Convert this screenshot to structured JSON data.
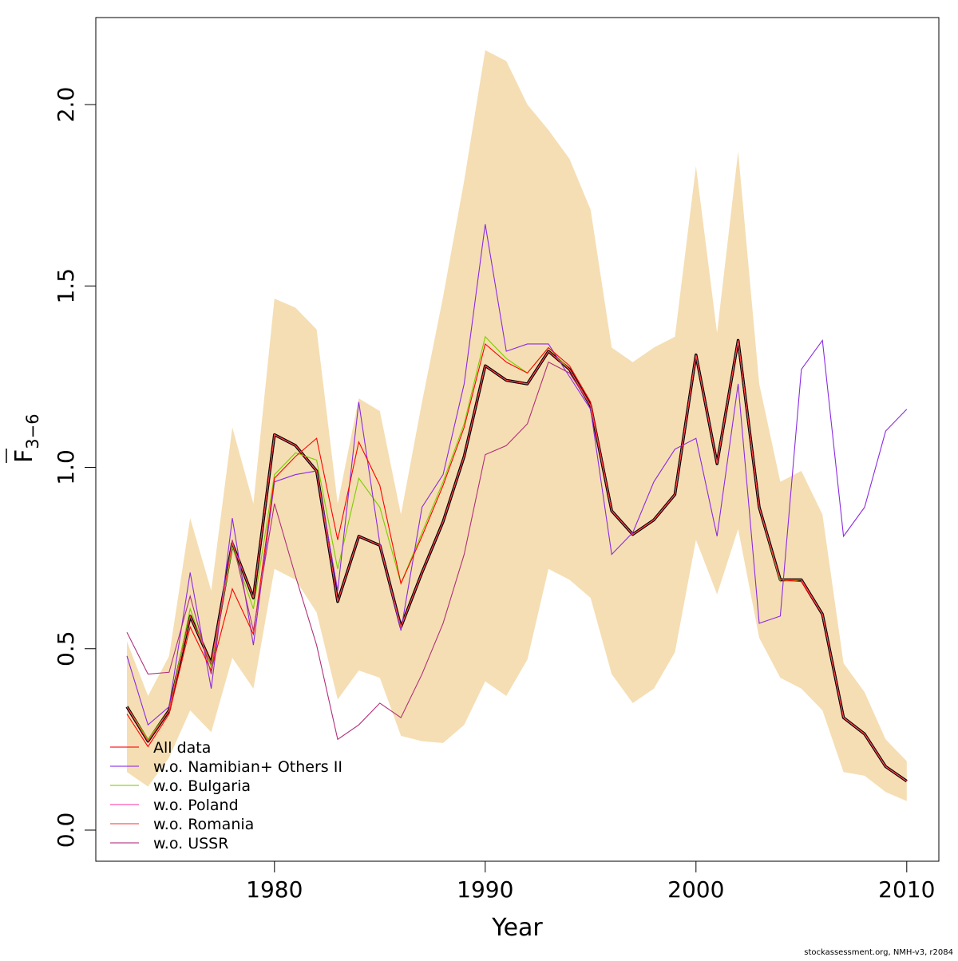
{
  "chart_data": {
    "type": "line",
    "title": "",
    "xlabel": "Year",
    "ylabel": "F̄3−6",
    "ylabel_main": "F",
    "ylabel_sub": "3−6",
    "xlim": [
      1972,
      2011.5
    ],
    "ylim": [
      -0.08,
      2.24
    ],
    "xticks": [
      1980,
      1990,
      2000,
      2010
    ],
    "yticks": [
      0.0,
      0.5,
      1.0,
      1.5,
      2.0
    ],
    "ytick_labels": [
      "0.0",
      "0.5",
      "1.0",
      "1.5",
      "2.0"
    ],
    "x": [
      1973,
      1974,
      1975,
      1976,
      1977,
      1978,
      1979,
      1980,
      1981,
      1982,
      1983,
      1984,
      1985,
      1986,
      1987,
      1988,
      1989,
      1990,
      1991,
      1992,
      1993,
      1994,
      1995,
      1996,
      1997,
      1998,
      1999,
      2000,
      2001,
      2002,
      2003,
      2004,
      2005,
      2006,
      2007,
      2008,
      2009,
      2010
    ],
    "band": {
      "color": "#F5DEB3",
      "upper": [
        0.52,
        0.37,
        0.48,
        0.86,
        0.66,
        1.11,
        0.9,
        1.465,
        1.44,
        1.38,
        0.9,
        1.19,
        1.155,
        0.87,
        1.18,
        1.47,
        1.79,
        2.15,
        2.12,
        2.0,
        1.93,
        1.85,
        1.71,
        1.33,
        1.29,
        1.33,
        1.36,
        1.83,
        1.37,
        1.87,
        1.23,
        0.96,
        0.99,
        0.87,
        0.46,
        0.38,
        0.25,
        0.19
      ],
      "lower": [
        0.16,
        0.12,
        0.2,
        0.33,
        0.27,
        0.475,
        0.39,
        0.72,
        0.69,
        0.6,
        0.36,
        0.44,
        0.42,
        0.26,
        0.245,
        0.24,
        0.29,
        0.41,
        0.37,
        0.47,
        0.72,
        0.69,
        0.64,
        0.43,
        0.35,
        0.39,
        0.49,
        0.8,
        0.65,
        0.83,
        0.53,
        0.42,
        0.39,
        0.33,
        0.16,
        0.15,
        0.105,
        0.08
      ]
    },
    "baseline": [
      0.34,
      0.245,
      0.33,
      0.59,
      0.46,
      0.79,
      0.64,
      1.09,
      1.06,
      0.99,
      0.63,
      0.81,
      0.785,
      0.56,
      0.71,
      0.85,
      1.03,
      1.28,
      1.24,
      1.23,
      1.32,
      1.27,
      1.17,
      0.88,
      0.815,
      0.855,
      0.925,
      1.31,
      1.01,
      1.35,
      0.89,
      0.69,
      0.69,
      0.595,
      0.31,
      0.265,
      0.175,
      0.135
    ],
    "series": [
      {
        "name": "All data",
        "color": "#FF0000",
        "values": [
          0.32,
          0.23,
          0.32,
          0.56,
          0.44,
          0.665,
          0.54,
          0.97,
          1.03,
          1.08,
          0.8,
          1.07,
          0.95,
          0.68,
          0.81,
          0.95,
          1.11,
          1.34,
          1.29,
          1.26,
          1.33,
          1.28,
          1.18,
          0.88,
          0.815,
          0.855,
          0.925,
          1.31,
          1.01,
          1.35,
          0.89,
          0.69,
          0.685,
          0.595,
          0.31,
          0.265,
          0.175,
          0.135
        ]
      },
      {
        "name": "w.o. Namibian+ Others II",
        "color": "#8A2BE2",
        "values": [
          0.48,
          0.29,
          0.34,
          0.71,
          0.39,
          0.86,
          0.51,
          0.96,
          0.98,
          0.99,
          0.66,
          1.18,
          0.79,
          0.55,
          0.89,
          0.98,
          1.23,
          1.67,
          1.32,
          1.34,
          1.34,
          1.25,
          1.16,
          0.76,
          0.82,
          0.96,
          1.05,
          1.08,
          0.81,
          1.23,
          0.57,
          0.59,
          1.27,
          1.35,
          0.81,
          0.89,
          1.1,
          1.16
        ]
      },
      {
        "name": "w.o. Bulgaria",
        "color": "#7CCD00",
        "values": [
          0.34,
          0.25,
          0.33,
          0.61,
          0.45,
          0.78,
          0.61,
          0.98,
          1.04,
          1.02,
          0.72,
          0.97,
          0.89,
          0.68,
          0.82,
          0.96,
          1.12,
          1.36,
          1.3,
          1.26,
          1.33,
          1.27,
          1.17,
          0.88,
          0.815,
          0.855,
          0.925,
          1.31,
          1.01,
          1.35,
          0.89,
          0.685,
          0.69,
          0.595,
          0.31,
          0.265,
          0.175,
          0.135
        ]
      },
      {
        "name": "w.o. Poland",
        "color": "#FF3EA5",
        "values": [
          0.34,
          0.245,
          0.33,
          0.59,
          0.46,
          0.79,
          0.64,
          1.09,
          1.06,
          0.99,
          0.63,
          0.81,
          0.785,
          0.56,
          0.71,
          0.85,
          1.03,
          1.28,
          1.24,
          1.23,
          1.32,
          1.27,
          1.17,
          0.88,
          0.815,
          0.855,
          0.925,
          1.31,
          1.01,
          1.35,
          0.89,
          0.69,
          0.69,
          0.595,
          0.31,
          0.265,
          0.175,
          0.135
        ]
      },
      {
        "name": "w.o. Romania",
        "color": "#FF4040",
        "values": [
          0.34,
          0.245,
          0.33,
          0.59,
          0.46,
          0.79,
          0.64,
          1.09,
          1.06,
          0.99,
          0.63,
          0.81,
          0.785,
          0.56,
          0.71,
          0.85,
          1.03,
          1.28,
          1.24,
          1.23,
          1.32,
          1.27,
          1.17,
          0.88,
          0.815,
          0.855,
          0.925,
          1.31,
          1.01,
          1.35,
          0.89,
          0.69,
          0.69,
          0.595,
          0.31,
          0.265,
          0.175,
          0.135
        ]
      },
      {
        "name": "w.o. USSR",
        "color": "#B0307A",
        "values": [
          0.545,
          0.43,
          0.435,
          0.645,
          0.43,
          0.8,
          0.55,
          0.9,
          0.7,
          0.51,
          0.25,
          0.29,
          0.35,
          0.31,
          0.43,
          0.57,
          0.76,
          1.035,
          1.06,
          1.12,
          1.29,
          1.26,
          1.17,
          0.88,
          0.815,
          0.855,
          0.925,
          1.31,
          1.01,
          1.35,
          0.89,
          0.69,
          0.69,
          0.595,
          0.31,
          0.265,
          0.175,
          0.135
        ]
      }
    ],
    "legend_position": "bottom-left",
    "grid": false,
    "annotation": "stockassessment.org, NMH-v3, r2084"
  }
}
